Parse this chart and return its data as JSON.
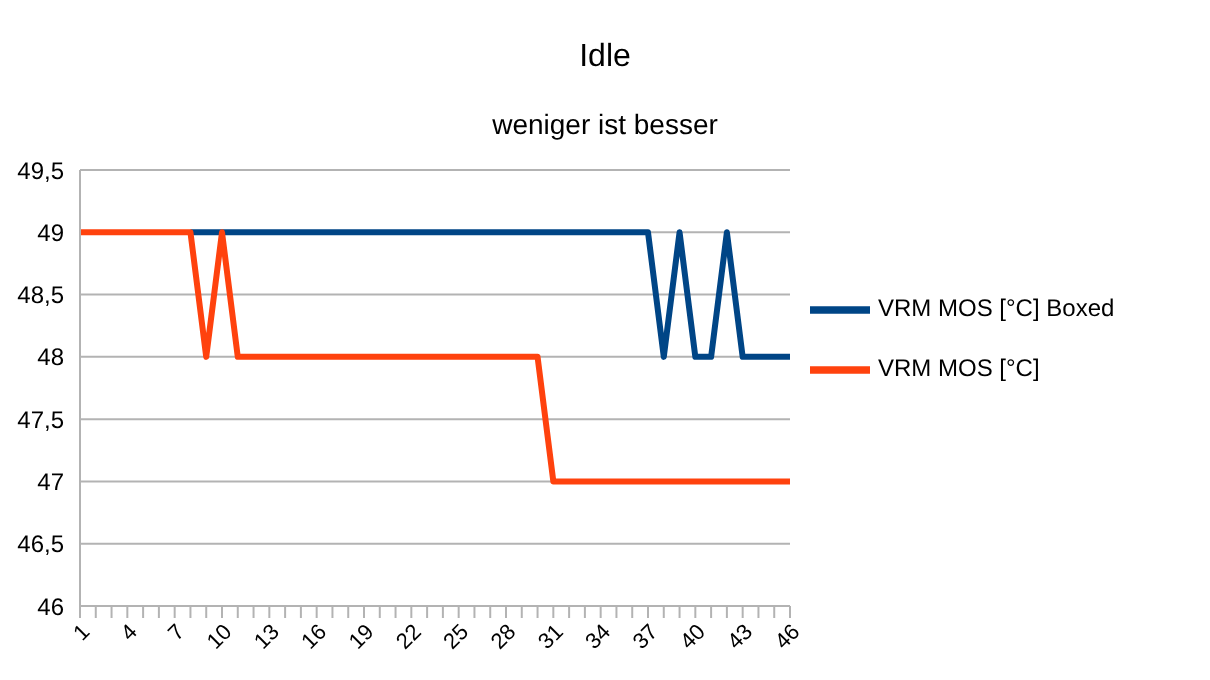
{
  "chart_data": {
    "type": "line",
    "title": "Idle",
    "subtitle": "weniger ist besser",
    "categories": [
      "1",
      null,
      null,
      "4",
      null,
      null,
      "7",
      null,
      null,
      "10",
      null,
      null,
      "13",
      null,
      null,
      "16",
      null,
      null,
      "19",
      null,
      null,
      "22",
      null,
      null,
      "25",
      null,
      null,
      "28",
      null,
      null,
      "31",
      null,
      null,
      "34",
      null,
      null,
      "37",
      null,
      null,
      "40",
      null,
      null,
      "43",
      null,
      null,
      "46"
    ],
    "series": [
      {
        "name": "VRM MOS [°C] Boxed",
        "color": "#004586",
        "values": [
          null,
          null,
          null,
          null,
          null,
          null,
          null,
          49,
          49,
          49,
          49,
          49,
          49,
          49,
          49,
          49,
          49,
          49,
          49,
          49,
          49,
          49,
          49,
          49,
          49,
          49,
          49,
          49,
          49,
          49,
          49,
          49,
          49,
          49,
          49,
          49,
          49,
          48,
          49,
          48,
          48,
          49,
          48,
          48,
          48,
          48
        ]
      },
      {
        "name": "VRM MOS [°C]",
        "color": "#ff420e",
        "values": [
          49,
          49,
          49,
          49,
          49,
          49,
          49,
          49,
          48,
          49,
          48,
          48,
          48,
          48,
          48,
          48,
          48,
          48,
          48,
          48,
          48,
          48,
          48,
          48,
          48,
          48,
          48,
          48,
          48,
          48,
          47,
          47,
          47,
          47,
          47,
          47,
          47,
          47,
          47,
          47,
          47,
          47,
          47,
          47,
          47,
          47
        ]
      }
    ],
    "ylim": [
      46,
      49.5
    ],
    "yticks": [
      46,
      {
        "value": 46.5,
        "label": "46,5"
      },
      47,
      {
        "value": 47.5,
        "label": "47,5"
      },
      48,
      {
        "value": 48.5,
        "label": "48,5"
      },
      49,
      {
        "value": 49.5,
        "label": "49,5"
      }
    ],
    "grid": "y",
    "legend": "right"
  }
}
